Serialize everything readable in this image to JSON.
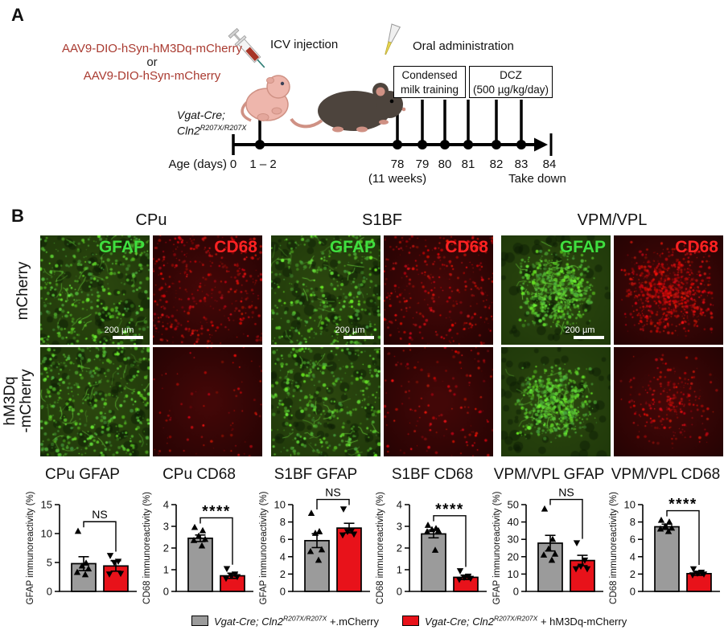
{
  "panel_a": {
    "label": "A",
    "virus_line1": "AAV9-DIO-hSyn-hM3Dq-mCherry",
    "or_text": "or",
    "virus_line2": "AAV9-DIO-hSyn-mCherry",
    "virus_text_color": "#a93a30",
    "icv_label": "ICV injection",
    "oral_label": "Oral administration",
    "genotype_line1": "Vgat-Cre;",
    "genotype_gene": "Cln2",
    "genotype_sup": "R207X/R207X",
    "box_milk": {
      "line1": "Condensed",
      "line2": "milk training"
    },
    "box_dcz": {
      "line1": "DCZ",
      "line2": "(500 µg/kg/day)"
    },
    "axis_label": "Age (days)",
    "tick_labels": [
      "0",
      "1 – 2",
      "78",
      "79",
      "80",
      "81",
      "82",
      "83",
      "84"
    ],
    "week_note": "(11 weeks)",
    "takedown_label": "Take down"
  },
  "panel_b": {
    "label": "B",
    "region_headers": [
      "CPu",
      "S1BF",
      "VPM/VPL"
    ],
    "row_labels": {
      "row1": "mCherry",
      "row2_line1": "hM3Dq",
      "row2_line2": "-mCherry"
    },
    "scalebar": "200 µm",
    "channel_colors": {
      "GFAP": "#3fdf3f",
      "CD68": "#ff2222"
    },
    "images": [
      {
        "region": "CPu",
        "row": "mCherry",
        "channel": "GFAP",
        "label": "GFAP",
        "tone": "gfap",
        "density": 0.55,
        "cluster": false,
        "scalebar": true,
        "seed": 7
      },
      {
        "region": "CPu",
        "row": "mCherry",
        "channel": "CD68",
        "label": "CD68",
        "tone": "cd68",
        "density": 0.5,
        "cluster": false,
        "scalebar": false,
        "seed": 20
      },
      {
        "region": "S1BF",
        "row": "mCherry",
        "channel": "GFAP",
        "label": "GFAP",
        "tone": "gfap",
        "density": 0.5,
        "cluster": false,
        "scalebar": true,
        "seed": 33
      },
      {
        "region": "S1BF",
        "row": "mCherry",
        "channel": "CD68",
        "label": "CD68",
        "tone": "cd68",
        "density": 0.42,
        "cluster": false,
        "scalebar": false,
        "seed": 46
      },
      {
        "region": "VPM/VPL",
        "row": "mCherry",
        "channel": "GFAP",
        "label": "GFAP",
        "tone": "gfap",
        "density": 0.8,
        "cluster": true,
        "scalebar": true,
        "seed": 59
      },
      {
        "region": "VPM/VPL",
        "row": "mCherry",
        "channel": "CD68",
        "label": "CD68",
        "tone": "cd68",
        "density": 0.95,
        "cluster": true,
        "scalebar": false,
        "seed": 72
      },
      {
        "region": "CPu",
        "row": "hM3Dq-mCherry",
        "channel": "GFAP",
        "tone": "gfap",
        "density": 0.6,
        "cluster": false,
        "scalebar": false,
        "seed": 85
      },
      {
        "region": "CPu",
        "row": "hM3Dq-mCherry",
        "channel": "CD68",
        "tone": "cd68",
        "density": 0.1,
        "cluster": false,
        "scalebar": false,
        "seed": 98
      },
      {
        "region": "S1BF",
        "row": "hM3Dq-mCherry",
        "channel": "GFAP",
        "tone": "gfap",
        "density": 0.5,
        "cluster": false,
        "scalebar": false,
        "seed": 111
      },
      {
        "region": "S1BF",
        "row": "hM3Dq-mCherry",
        "channel": "CD68",
        "tone": "cd68",
        "density": 0.18,
        "cluster": false,
        "scalebar": false,
        "seed": 124
      },
      {
        "region": "VPM/VPL",
        "row": "hM3Dq-mCherry",
        "channel": "GFAP",
        "tone": "gfap",
        "density": 0.75,
        "cluster": true,
        "scalebar": false,
        "seed": 137
      },
      {
        "region": "VPM/VPL",
        "row": "hM3Dq-mCherry",
        "channel": "CD68",
        "tone": "cd68",
        "density": 0.3,
        "cluster": true,
        "scalebar": false,
        "seed": 150
      }
    ]
  },
  "chart_data": [
    {
      "type": "bar",
      "title": "CPu GFAP",
      "ylabel": "GFAP immunoreactivity (%)",
      "ylim": [
        0,
        15
      ],
      "yticks": [
        0,
        5,
        10,
        15
      ],
      "groups": [
        {
          "name": "mCherry",
          "color": "#9b9b9b",
          "marker": "up",
          "mean": 4.8,
          "sem": 1.2,
          "points": [
            10.4,
            4.9,
            4.4,
            3.9,
            3.3,
            2.9
          ]
        },
        {
          "name": "hM3Dq-mCherry",
          "color": "#e8121a",
          "marker": "down",
          "mean": 4.4,
          "sem": 0.9,
          "points": [
            6.2,
            5.2,
            5.0,
            3.1,
            3.0
          ]
        }
      ],
      "significance": "NS"
    },
    {
      "type": "bar",
      "title": "CPu CD68",
      "ylabel": "CD68 immunoreactivity (%)",
      "ylim": [
        0,
        4
      ],
      "yticks": [
        0,
        1,
        2,
        3,
        4
      ],
      "groups": [
        {
          "name": "mCherry",
          "color": "#9b9b9b",
          "marker": "up",
          "mean": 2.45,
          "sem": 0.15,
          "points": [
            2.95,
            2.8,
            2.55,
            2.4,
            2.35,
            2.1
          ]
        },
        {
          "name": "hM3Dq-mCherry",
          "color": "#e8121a",
          "marker": "down",
          "mean": 0.72,
          "sem": 0.12,
          "points": [
            1.05,
            0.8,
            0.75,
            0.68,
            0.6
          ]
        }
      ],
      "significance": "****"
    },
    {
      "type": "bar",
      "title": "S1BF GFAP",
      "ylabel": "GFAP immunoreactivity (%)",
      "ylim": [
        0,
        10
      ],
      "yticks": [
        0,
        2,
        4,
        6,
        8,
        10
      ],
      "groups": [
        {
          "name": "mCherry",
          "color": "#9b9b9b",
          "marker": "up",
          "mean": 5.85,
          "sem": 0.8,
          "points": [
            9.0,
            6.9,
            6.7,
            4.8,
            4.6,
            3.6
          ]
        },
        {
          "name": "hM3Dq-mCherry",
          "color": "#e8121a",
          "marker": "down",
          "mean": 7.3,
          "sem": 0.55,
          "points": [
            9.5,
            7.0,
            6.9,
            6.6,
            6.5
          ]
        }
      ],
      "significance": "NS"
    },
    {
      "type": "bar",
      "title": "S1BF CD68",
      "ylabel": "CD68 immunoreactivity (%)",
      "ylim": [
        0,
        4
      ],
      "yticks": [
        0,
        1,
        2,
        3,
        4
      ],
      "groups": [
        {
          "name": "mCherry",
          "color": "#9b9b9b",
          "marker": "up",
          "mean": 2.65,
          "sem": 0.18,
          "points": [
            3.05,
            2.9,
            2.85,
            2.8,
            2.75,
            1.9
          ]
        },
        {
          "name": "hM3Dq-mCherry",
          "color": "#e8121a",
          "marker": "down",
          "mean": 0.65,
          "sem": 0.1,
          "points": [
            0.95,
            0.7,
            0.65,
            0.6,
            0.55
          ]
        }
      ],
      "significance": "****"
    },
    {
      "type": "bar",
      "title": "VPM/VPL GFAP",
      "ylabel": "GFAP immunoreactivity (%)",
      "ylim": [
        0,
        50
      ],
      "yticks": [
        0,
        10,
        20,
        30,
        40,
        50
      ],
      "groups": [
        {
          "name": "mCherry",
          "color": "#9b9b9b",
          "marker": "up",
          "mean": 27.8,
          "sem": 4.5,
          "points": [
            47.5,
            30,
            24.5,
            21.5,
            21,
            18
          ]
        },
        {
          "name": "hM3Dq-mCherry",
          "color": "#e8121a",
          "marker": "down",
          "mean": 17.8,
          "sem": 3,
          "points": [
            28,
            18,
            14.5,
            13,
            13
          ]
        }
      ],
      "significance": "NS"
    },
    {
      "type": "bar",
      "title": "VPM/VPL CD68",
      "ylabel": "CD68 immunoreactivity (%)",
      "ylim": [
        0,
        10
      ],
      "yticks": [
        0,
        2,
        4,
        6,
        8,
        10
      ],
      "groups": [
        {
          "name": "mCherry",
          "color": "#9b9b9b",
          "marker": "up",
          "mean": 7.45,
          "sem": 0.3,
          "points": [
            8.2,
            8.0,
            7.5,
            7.3,
            7.2,
            6.9
          ]
        },
        {
          "name": "hM3Dq-mCherry",
          "color": "#e8121a",
          "marker": "down",
          "mean": 2.05,
          "sem": 0.2,
          "points": [
            2.6,
            2.2,
            2.1,
            2.0,
            1.9
          ]
        }
      ],
      "significance": "****"
    }
  ],
  "legend": {
    "items": [
      {
        "color": "#9b9b9b",
        "prefix": "Vgat-Cre; Cln2",
        "sup": "R207X/R207X",
        "suffix": " +.mCherry"
      },
      {
        "color": "#e8121a",
        "prefix": "Vgat-Cre; Cln2",
        "sup": "R207X/R207X",
        "suffix": " + hM3Dq-mCherry"
      }
    ]
  }
}
